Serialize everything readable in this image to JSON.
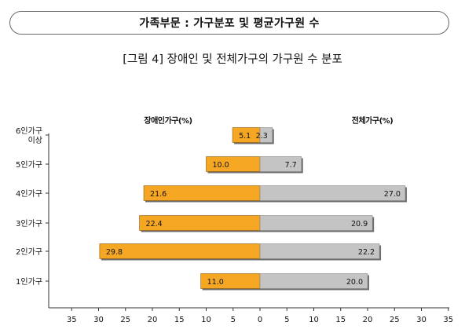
{
  "section_header": "가족부문 : 가구분포 및 평균가구원 수",
  "figure_title": "[그림 4] 장애인 및 전체가구의 가구원 수 분포",
  "chart_data": {
    "type": "bar",
    "orientation": "horizontal-butterfly",
    "categories": [
      "6인가구 이상",
      "5인가구",
      "4인가구",
      "3인가구",
      "2인가구",
      "1인가구"
    ],
    "category_lines": [
      [
        "6인가구",
        "이상"
      ],
      [
        "5인가구"
      ],
      [
        "4인가구"
      ],
      [
        "3인가구"
      ],
      [
        "2인가구"
      ],
      [
        "1인가구"
      ]
    ],
    "series": [
      {
        "name": "장애인가구(%)",
        "side": "left",
        "color": "#f5a623",
        "values": [
          5.1,
          10.0,
          21.6,
          22.4,
          29.8,
          11.0
        ],
        "labels": [
          "5.1",
          "10.0",
          "21.6",
          "22.4",
          "29.8",
          "11.0"
        ]
      },
      {
        "name": "전체가구(%)",
        "side": "right",
        "color": "#c4c4c4",
        "values": [
          2.3,
          7.7,
          27.0,
          20.9,
          22.2,
          20.0
        ],
        "labels": [
          "2.3",
          "7.7",
          "27.0",
          "20.9",
          "22.2",
          "20.0"
        ]
      }
    ],
    "x_ticks": [
      "35",
      "30",
      "25",
      "20",
      "15",
      "10",
      "5",
      "0",
      "5",
      "10",
      "15",
      "20",
      "25",
      "30",
      "35"
    ],
    "xlim": [
      -35,
      35
    ],
    "legend_placement": "top"
  }
}
